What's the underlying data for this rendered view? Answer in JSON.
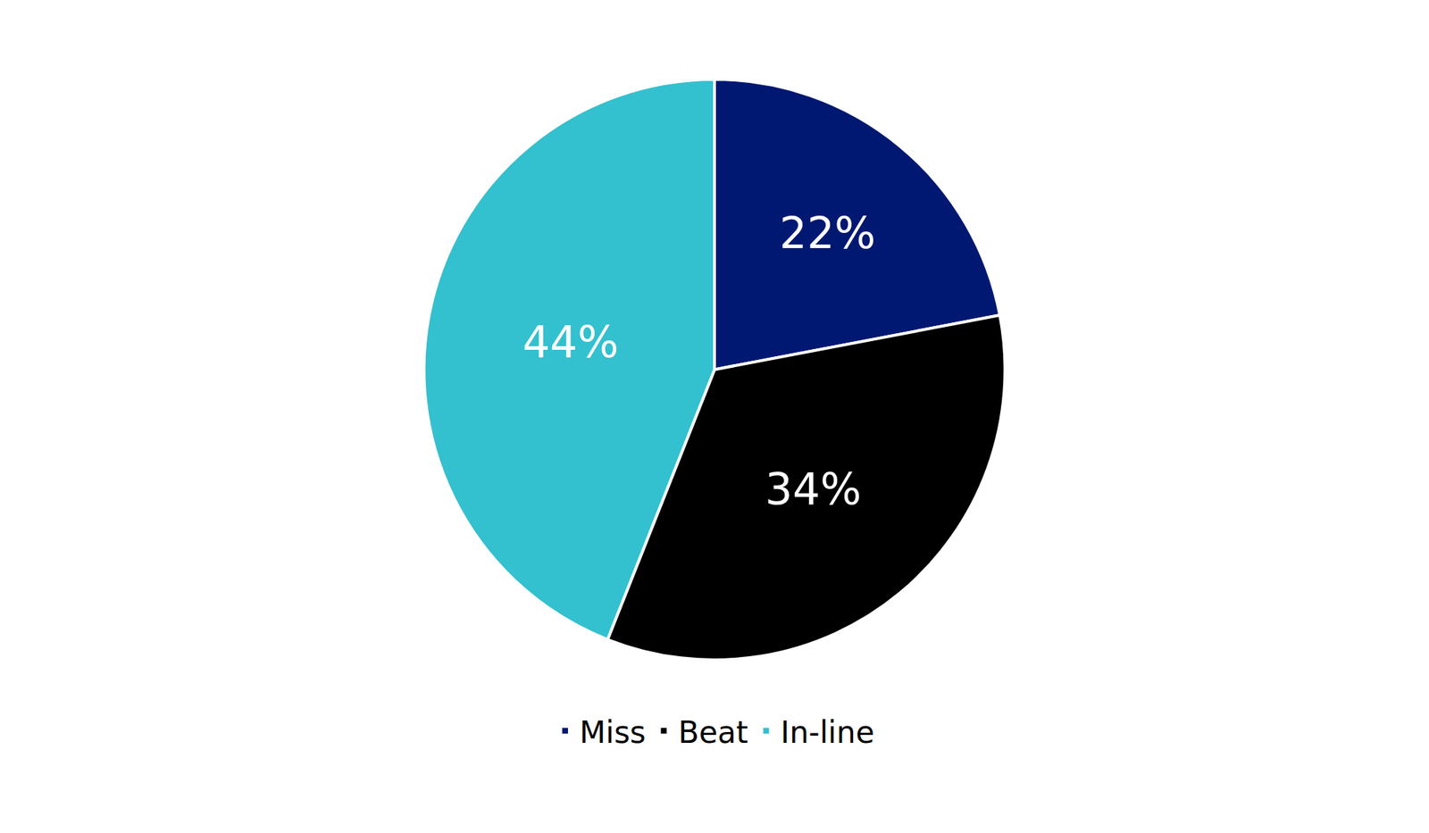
{
  "chart_data": {
    "type": "pie",
    "categories": [
      "Miss",
      "Beat",
      "In-line"
    ],
    "values": [
      22,
      34,
      44
    ],
    "value_labels": [
      "22%",
      "34%",
      "44%"
    ],
    "colors": [
      "#001871",
      "#000000",
      "#33c0cf"
    ],
    "data_labels": true,
    "legend": "bottom"
  }
}
